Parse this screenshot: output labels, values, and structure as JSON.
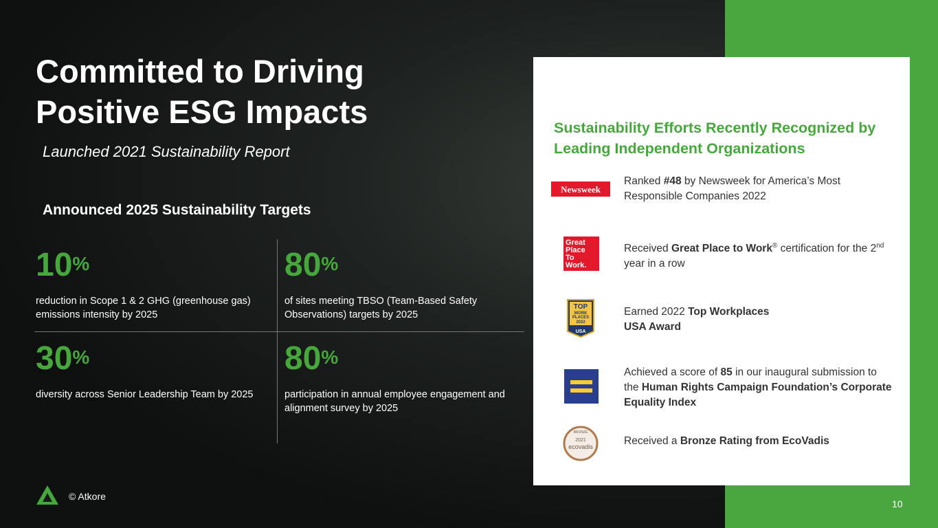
{
  "title": [
    "Committed to Driving",
    "Positive ESG Impacts"
  ],
  "subtitle": "Launched 2021 Sustainability Report",
  "targets": {
    "heading": "Announced 2025 Sustainability Targets",
    "items": [
      {
        "value": 10,
        "unit": "%",
        "text": "reduction in Scope 1 & 2 GHG (greenhouse gas) emissions intensity by 2025"
      },
      {
        "value": 80,
        "unit": "%",
        "text": "of sites meeting TBSO (Team-Based Safety Observations) targets by 2025"
      },
      {
        "value": 30,
        "unit": "%",
        "text": "diversity across Senior Leadership Team by 2025"
      },
      {
        "value": 80,
        "unit": "%",
        "text": "participation in annual employee engagement and alignment survey by 2025"
      }
    ]
  },
  "recognition": {
    "heading": "Sustainability Efforts Recently Recognized by Leading Independent Organizations",
    "items": [
      {
        "logo": [
          "Newsweek"
        ],
        "segments": [
          {
            "text": "Ranked "
          },
          {
            "text": "#48",
            "style": "bold"
          },
          {
            "text": " by Newsweek for America’s Most Responsible Companies 2022"
          }
        ]
      },
      {
        "logo": [
          "Great",
          "Place",
          "To",
          "Work."
        ],
        "segments": [
          {
            "text": "Received "
          },
          {
            "text": "Great Place to Work",
            "style": "bold"
          },
          {
            "text": "®",
            "style": "sup"
          },
          {
            "text": " certification for the 2"
          },
          {
            "text": "nd",
            "style": "sup"
          },
          {
            "text": " year in a row"
          }
        ]
      },
      {
        "logo": [
          "TOP",
          "WORK",
          "PLACES",
          "2022",
          "USA"
        ],
        "segments": [
          {
            "text": "Earned 2022 "
          },
          {
            "text": "Top Workplaces USA Award",
            "style": "bold"
          }
        ]
      },
      {
        "logo": [],
        "segments": [
          {
            "text": "Achieved a score of "
          },
          {
            "text": "85",
            "style": "bold"
          },
          {
            "text": " in our inaugural submission to the "
          },
          {
            "text": "Human Rights Campaign Foundation’s Corporate Equality Index",
            "style": "bold"
          }
        ]
      },
      {
        "logo": [
          "BRONZE",
          "2021",
          "ecovadis"
        ],
        "segments": [
          {
            "text": "Received a "
          },
          {
            "text": "Bronze Rating from EcoVadis",
            "style": "bold"
          }
        ]
      }
    ]
  },
  "footer": {
    "copyright": "© Atkore",
    "page": 10
  }
}
